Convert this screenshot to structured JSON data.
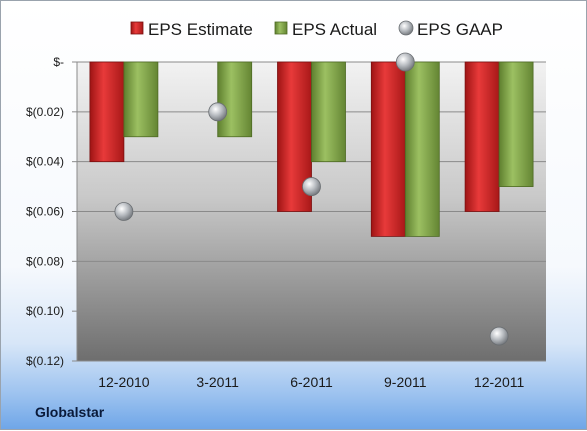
{
  "company_label": "Globalstar",
  "colors": {
    "estimate": "#d42a2a",
    "actual": "#8aae52",
    "gaap": "#b0b4b8"
  },
  "chart_data": {
    "type": "bar",
    "categories": [
      "12-2010",
      "3-2011",
      "6-2011",
      "9-2011",
      "12-2011"
    ],
    "series": [
      {
        "name": "EPS Estimate",
        "kind": "bar",
        "values": [
          -0.04,
          null,
          -0.06,
          -0.07,
          -0.06
        ]
      },
      {
        "name": "EPS Actual",
        "kind": "bar",
        "values": [
          -0.03,
          -0.03,
          -0.04,
          -0.07,
          -0.05
        ]
      },
      {
        "name": "EPS GAAP",
        "kind": "marker",
        "values": [
          -0.06,
          -0.02,
          -0.05,
          0.0,
          -0.11
        ]
      }
    ],
    "ylim": [
      -0.12,
      0.0
    ],
    "yticks": [
      0.0,
      -0.02,
      -0.04,
      -0.06,
      -0.08,
      -0.1,
      -0.12
    ],
    "ytick_labels": [
      "$-",
      "$(0.02)",
      "$(0.04)",
      "$(0.06)",
      "$(0.08)",
      "$(0.10)",
      "$(0.12)"
    ],
    "legend_position": "top",
    "grid": true
  }
}
